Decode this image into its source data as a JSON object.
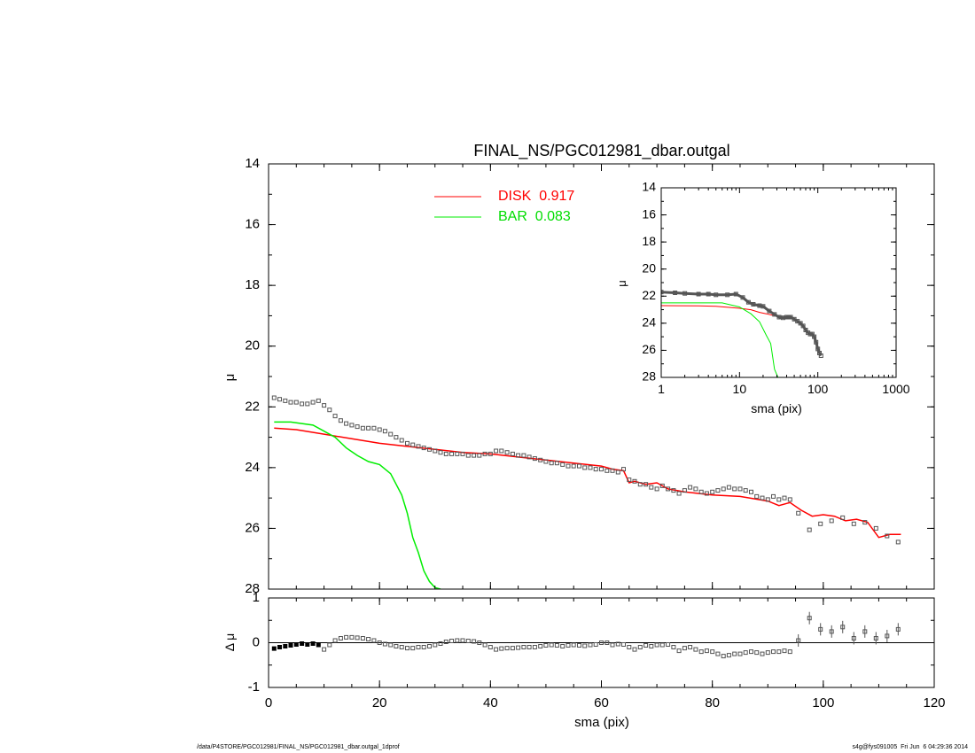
{
  "footer": {
    "path": "/data/P4STORE/PGC012981/FINAL_NS/PGC012981_dbar.outgal_1dprof",
    "stamp": "s4g@fys091005  Fri Jun  6 04:29:36 2014"
  },
  "chart_data": [
    {
      "type": "line",
      "title": "FINAL_NS/PGC012981_dbar.outgal",
      "xlabel": "",
      "ylabel": "μ",
      "xlim": [
        0,
        120
      ],
      "ylim": [
        28,
        14
      ],
      "y_inverted": true,
      "x_ticks": [
        0,
        20,
        40,
        60,
        80,
        100,
        120
      ],
      "y_ticks": [
        14,
        16,
        18,
        20,
        22,
        24,
        26,
        28
      ],
      "legend_position": "top-center",
      "series": [
        {
          "name": "DISK  0.917",
          "color": "#ff0000",
          "x": [
            1,
            5,
            10,
            15,
            20,
            25,
            30,
            35,
            40,
            45,
            50,
            55,
            60,
            62,
            64,
            65,
            66,
            68,
            70,
            72,
            75,
            80,
            85,
            90,
            92,
            94,
            96,
            98,
            100,
            102,
            104,
            106,
            108,
            110,
            112,
            114
          ],
          "y": [
            22.7,
            22.75,
            22.9,
            23.05,
            23.2,
            23.3,
            23.4,
            23.5,
            23.55,
            23.65,
            23.75,
            23.85,
            23.95,
            24.05,
            24.1,
            24.5,
            24.45,
            24.55,
            24.5,
            24.7,
            24.8,
            24.9,
            24.95,
            25.1,
            25.25,
            25.15,
            25.4,
            25.6,
            25.55,
            25.6,
            25.75,
            25.7,
            25.8,
            26.3,
            26.2,
            26.2
          ]
        },
        {
          "name": "BAR  0.083",
          "color": "#00ee00",
          "x": [
            1,
            4,
            8,
            10,
            12,
            14,
            16,
            18,
            20,
            22,
            24,
            25,
            26,
            27,
            28,
            29,
            30,
            31
          ],
          "y": [
            22.5,
            22.5,
            22.6,
            22.8,
            23.0,
            23.35,
            23.6,
            23.8,
            23.9,
            24.2,
            24.9,
            25.5,
            26.3,
            26.8,
            27.4,
            27.75,
            27.95,
            28.0
          ]
        },
        {
          "name": "",
          "type": "scatter",
          "color": "#555555",
          "x": [
            1,
            2,
            3,
            4,
            5,
            6,
            7,
            8,
            9,
            10,
            11,
            12,
            13,
            14,
            15,
            16,
            17,
            18,
            19,
            20,
            21,
            22,
            23,
            24,
            25,
            26,
            27,
            28,
            29,
            30,
            31,
            32,
            33,
            34,
            35,
            36,
            37,
            38,
            39,
            40,
            41,
            42,
            43,
            44,
            45,
            46,
            47,
            48,
            49,
            50,
            51,
            52,
            53,
            54,
            55,
            56,
            57,
            58,
            59,
            60,
            61,
            62,
            63,
            64,
            65,
            66,
            67,
            68,
            69,
            70,
            71,
            72,
            73,
            74,
            75,
            76,
            77,
            78,
            79,
            80,
            81,
            82,
            83,
            84,
            85,
            86,
            87,
            88,
            89,
            90,
            91,
            92,
            93,
            94,
            95.5,
            97.5,
            99.5,
            101.5,
            103.5,
            105.5,
            107.5,
            109.5,
            111.5,
            113.5
          ],
          "y": [
            21.7,
            21.75,
            21.8,
            21.85,
            21.85,
            21.9,
            21.9,
            21.85,
            21.8,
            21.95,
            22.1,
            22.3,
            22.45,
            22.55,
            22.6,
            22.65,
            22.7,
            22.7,
            22.7,
            22.75,
            22.8,
            22.9,
            23.0,
            23.1,
            23.2,
            23.25,
            23.3,
            23.35,
            23.4,
            23.45,
            23.5,
            23.55,
            23.55,
            23.55,
            23.55,
            23.6,
            23.6,
            23.6,
            23.55,
            23.55,
            23.45,
            23.45,
            23.5,
            23.55,
            23.6,
            23.6,
            23.65,
            23.7,
            23.75,
            23.8,
            23.85,
            23.85,
            23.9,
            23.95,
            23.95,
            23.95,
            24.0,
            24.0,
            24.05,
            24.05,
            24.1,
            24.1,
            24.15,
            24.05,
            24.4,
            24.45,
            24.55,
            24.55,
            24.65,
            24.7,
            24.6,
            24.7,
            24.75,
            24.85,
            24.75,
            24.65,
            24.7,
            24.8,
            24.85,
            24.8,
            24.75,
            24.7,
            24.65,
            24.7,
            24.7,
            24.75,
            24.8,
            24.95,
            25.0,
            25.05,
            24.95,
            25.05,
            25.0,
            25.05,
            25.5,
            26.05,
            25.85,
            25.75,
            25.65,
            25.85,
            25.8,
            26.0,
            26.25,
            26.45
          ]
        }
      ]
    },
    {
      "type": "scatter",
      "title": "",
      "xlabel": "",
      "ylabel": "μ",
      "x_scale": "log",
      "xlim": [
        1,
        1000
      ],
      "ylim": [
        28,
        14
      ],
      "y_inverted": true,
      "x_ticks": [
        1,
        10,
        100,
        1000
      ],
      "y_ticks": [
        14,
        16,
        18,
        20,
        22,
        24,
        26,
        28
      ],
      "series": [
        {
          "name": "",
          "color": "#ff0000",
          "x": [
            1,
            3,
            5,
            8,
            10,
            14,
            18,
            22,
            26,
            30
          ],
          "y": [
            22.7,
            22.72,
            22.75,
            22.85,
            22.9,
            23.0,
            23.2,
            23.3,
            23.4,
            23.4
          ]
        },
        {
          "name": "",
          "color": "#00ee00",
          "x": [
            1,
            3,
            6,
            10,
            14,
            18,
            22,
            25,
            28,
            31
          ],
          "y": [
            22.5,
            22.5,
            22.5,
            22.8,
            23.3,
            23.9,
            24.9,
            25.5,
            27.4,
            28.0
          ]
        },
        {
          "name": "",
          "color": "#555555",
          "x": [
            1,
            1.5,
            2,
            3,
            4,
            5,
            7,
            9,
            11,
            13,
            15,
            18,
            20,
            24,
            28,
            32,
            36,
            40,
            45,
            50,
            55,
            60,
            65,
            70,
            75,
            80,
            85,
            90,
            95,
            100,
            105,
            110
          ],
          "y": [
            21.7,
            21.75,
            21.8,
            21.85,
            21.85,
            21.9,
            21.9,
            21.85,
            22.1,
            22.45,
            22.6,
            22.7,
            22.75,
            23.1,
            23.35,
            23.55,
            23.6,
            23.55,
            23.55,
            23.7,
            23.85,
            24.0,
            24.2,
            24.5,
            24.7,
            24.8,
            24.8,
            25.0,
            25.4,
            25.9,
            26.2,
            26.4
          ]
        }
      ]
    },
    {
      "type": "scatter",
      "title": "",
      "xlabel": "sma (pix)",
      "ylabel": "Δ μ",
      "xlim": [
        0,
        120
      ],
      "ylim": [
        -1,
        1
      ],
      "x_ticks": [
        0,
        20,
        40,
        60,
        80,
        100,
        120
      ],
      "y_ticks": [
        -1,
        0,
        1
      ],
      "series": [
        {
          "name": "",
          "color": "#000000",
          "x": [
            1,
            2,
            3,
            4,
            5,
            6,
            7,
            8,
            9,
            10,
            11,
            12,
            13,
            14,
            15,
            16,
            17,
            18,
            19,
            20,
            21,
            22,
            23,
            24,
            25,
            26,
            27,
            28,
            29,
            30,
            31,
            32,
            33,
            34,
            35,
            36,
            37,
            38,
            39,
            40,
            41,
            42,
            43,
            44,
            45,
            46,
            47,
            48,
            49,
            50,
            51,
            52,
            53,
            54,
            55,
            56,
            57,
            58,
            59,
            60,
            61,
            62,
            63,
            64,
            65,
            66,
            67,
            68,
            69,
            70,
            71,
            72,
            73,
            74,
            75,
            76,
            77,
            78,
            79,
            80,
            81,
            82,
            83,
            84,
            85,
            86,
            87,
            88,
            89,
            90,
            91,
            92,
            93,
            94,
            95.5,
            97.5,
            99.5,
            101.5,
            103.5,
            105.5,
            107.5,
            109.5,
            111.5,
            113.5
          ],
          "y": [
            -0.13,
            -0.1,
            -0.08,
            -0.06,
            -0.04,
            -0.02,
            -0.04,
            -0.02,
            -0.05,
            -0.15,
            -0.05,
            0.05,
            0.1,
            0.12,
            0.12,
            0.11,
            0.1,
            0.08,
            0.05,
            0.0,
            -0.03,
            -0.05,
            -0.08,
            -0.1,
            -0.12,
            -0.12,
            -0.1,
            -0.1,
            -0.08,
            -0.05,
            -0.02,
            0.02,
            0.04,
            0.05,
            0.05,
            0.04,
            0.03,
            0.0,
            -0.05,
            -0.1,
            -0.15,
            -0.13,
            -0.12,
            -0.12,
            -0.11,
            -0.1,
            -0.1,
            -0.1,
            -0.08,
            -0.06,
            -0.05,
            -0.06,
            -0.08,
            -0.06,
            -0.05,
            -0.06,
            -0.07,
            -0.05,
            -0.04,
            0.0,
            0.0,
            -0.05,
            -0.03,
            -0.04,
            -0.1,
            -0.15,
            -0.1,
            -0.06,
            -0.08,
            -0.05,
            -0.05,
            -0.04,
            -0.1,
            -0.18,
            -0.12,
            -0.1,
            -0.15,
            -0.2,
            -0.18,
            -0.2,
            -0.25,
            -0.3,
            -0.28,
            -0.25,
            -0.25,
            -0.22,
            -0.2,
            -0.22,
            -0.25,
            -0.22,
            -0.2,
            -0.2,
            -0.18,
            -0.2,
            0.05,
            0.55,
            0.3,
            0.25,
            0.35,
            0.1,
            0.25,
            0.1,
            0.15,
            0.3
          ]
        }
      ]
    }
  ]
}
